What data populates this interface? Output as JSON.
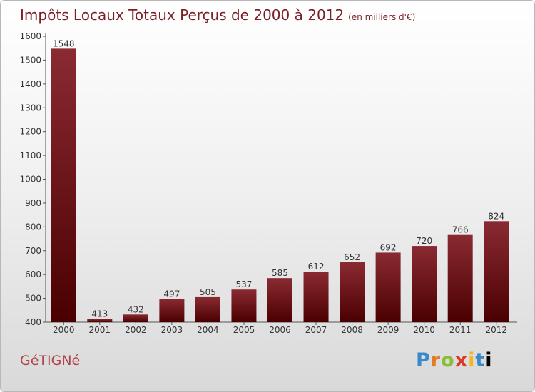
{
  "header": {
    "title": "Impôts Locaux Totaux Perçus de 2000 à 2012",
    "unit": "(en milliers d'€)"
  },
  "footer": {
    "town": "GéTIGNé",
    "logo_letters": [
      "P",
      "r",
      "o",
      "x",
      "i",
      "t",
      "i"
    ]
  },
  "colors": {
    "bar_top": "#8a2a32",
    "bar_bottom": "#4a0000",
    "title": "#7a1f25",
    "grid": "#c9c9c9"
  },
  "chart_data": {
    "type": "bar",
    "title": "Impôts Locaux Totaux Perçus de 2000 à 2012",
    "subtitle": "(en milliers d'€)",
    "categories": [
      "2000",
      "2001",
      "2002",
      "2003",
      "2004",
      "2005",
      "2006",
      "2007",
      "2008",
      "2009",
      "2010",
      "2011",
      "2012"
    ],
    "values": [
      1548,
      413,
      432,
      497,
      505,
      537,
      585,
      612,
      652,
      692,
      720,
      766,
      824
    ],
    "ylim": [
      400,
      1600
    ],
    "yticks": [
      400,
      500,
      600,
      700,
      800,
      900,
      1000,
      1100,
      1200,
      1300,
      1400,
      1500,
      1600
    ],
    "grid": false
  }
}
